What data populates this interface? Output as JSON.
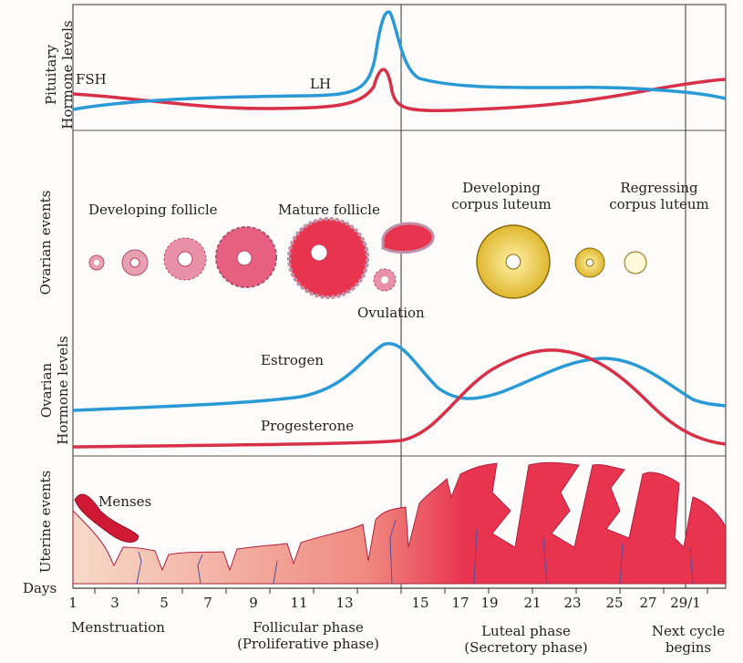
{
  "section_labels": {
    "pituitary": [
      "Pituitary",
      "Hormone levels"
    ],
    "ovarian_events": "Ovarian events",
    "ovarian_hormones": [
      "Ovarian",
      "Hormone levels"
    ],
    "uterine_events": "Uterine events"
  },
  "pituitary": {
    "fsh": "FSH",
    "lh": "LH",
    "fsh_color": "#d9304a",
    "lh_color": "#2a9ad6"
  },
  "ovarian": {
    "developing_follicle": "Developing follicle",
    "mature_follicle": "Mature follicle",
    "developing_corpus_luteum": [
      "Developing",
      "corpus luteum"
    ],
    "regressing_corpus_luteum": [
      "Regressing",
      "corpus luteum"
    ],
    "ovulation": "Ovulation"
  },
  "ovarian_hormones": {
    "estrogen": "Estrogen",
    "progesterone": "Progesterone",
    "estrogen_color": "#2a9ad6",
    "progesterone_color": "#d9304a"
  },
  "uterine": {
    "menses": "Menses",
    "lining_color": "#e8344f"
  },
  "axis": {
    "label": "Days",
    "ticks": [
      "1",
      "3",
      "5",
      "7",
      "9",
      "11",
      "13",
      "15",
      "17",
      "19",
      "21",
      "23",
      "25",
      "27",
      "29/1"
    ]
  },
  "phases": {
    "menstruation": "Menstruation",
    "follicular": [
      "Follicular phase",
      "(Proliferative phase)"
    ],
    "luteal": [
      "Luteal phase",
      "(Secretory phase)"
    ],
    "next_cycle": [
      "Next cycle",
      "begins"
    ]
  }
}
